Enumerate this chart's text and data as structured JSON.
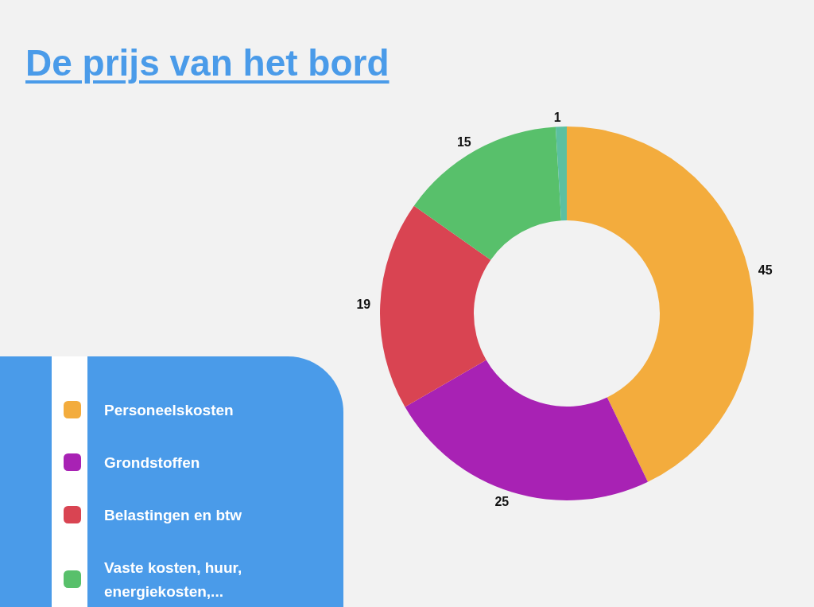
{
  "chart_data": {
    "type": "donut",
    "title": "De prijs van het bord",
    "categories": [
      "Personeelskosten",
      "Grondstoffen",
      "Belastingen en btw",
      "Vaste kosten, huur, energiekosten,...",
      null
    ],
    "values": [
      45,
      25,
      19,
      15,
      1
    ],
    "colors": [
      "#f3ac3d",
      "#a822b4",
      "#d94452",
      "#58c06b",
      "#5bc0a0"
    ],
    "data_labels": true,
    "legend": "bottom left"
  }
}
